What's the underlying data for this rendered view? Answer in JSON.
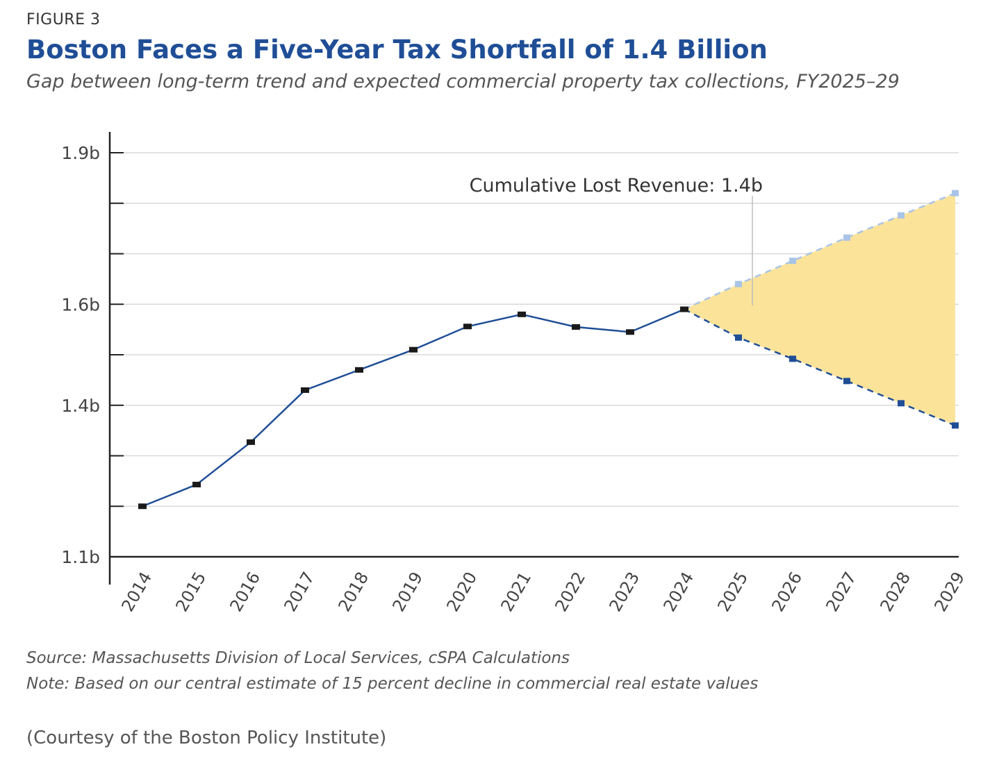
{
  "figure": {
    "label": "FIGURE 3",
    "source": "Source: Massachusetts Division of Local Services, cSPA Calculations",
    "note": "Note: Based on our central estimate of 15 percent decline in commercial real estate values"
  },
  "caption": "(Courtesy of the Boston Policy Institute)",
  "colors": {
    "title": "#1f4e96",
    "line": "#1f4e96",
    "trend": "#a9c4e6",
    "gap_fill": "#fbe39a",
    "marker": "#1a1a1a"
  },
  "chart_data": {
    "type": "line",
    "title": "Boston Faces a Five-Year Tax Shortfall of 1.4 Billion",
    "subtitle": "Gap between long-term trend and expected commercial property tax collections, FY2025–29",
    "annotation": "Cumulative Lost Revenue: 1.4b",
    "ylim": [
      1.1,
      1.9
    ],
    "y_ticks": [
      1.1,
      1.2,
      1.3,
      1.4,
      1.5,
      1.6,
      1.7,
      1.8,
      1.9
    ],
    "y_tick_labels": [
      {
        "value": 1.9,
        "label": "1.9b"
      },
      {
        "value": 1.6,
        "label": "1.6b"
      },
      {
        "value": 1.4,
        "label": "1.4b"
      },
      {
        "value": 1.1,
        "label": "1.1b"
      }
    ],
    "grid": true,
    "x": [
      "2014",
      "2015",
      "2016",
      "2017",
      "2018",
      "2019",
      "2020",
      "2021",
      "2022",
      "2023",
      "2024",
      "2025",
      "2026",
      "2027",
      "2028",
      "2029"
    ],
    "series": [
      {
        "style": "solid",
        "x": [
          "2014",
          "2015",
          "2016",
          "2017",
          "2018",
          "2019",
          "2020",
          "2021",
          "2022",
          "2023",
          "2024"
        ],
        "values": [
          1.2,
          1.243,
          1.327,
          1.43,
          1.47,
          1.51,
          1.556,
          1.58,
          1.555,
          1.545,
          1.59
        ]
      },
      {
        "style": "dashed",
        "x": [
          "2024",
          "2025",
          "2026",
          "2027",
          "2028",
          "2029"
        ],
        "values": [
          1.59,
          1.534,
          1.492,
          1.448,
          1.404,
          1.36
        ]
      },
      {
        "style": "dashed",
        "x": [
          "2024",
          "2025",
          "2026",
          "2027",
          "2028",
          "2029"
        ],
        "values": [
          1.59,
          1.64,
          1.686,
          1.732,
          1.776,
          1.82
        ]
      }
    ]
  }
}
